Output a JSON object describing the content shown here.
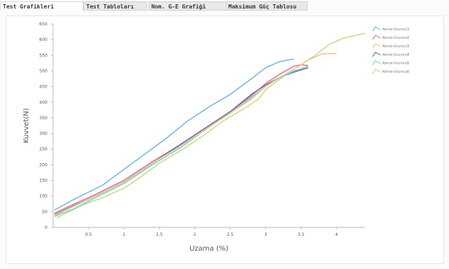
{
  "tabs": [
    {
      "label": "Test Grafikleri",
      "active": true
    },
    {
      "label": "Test Tabloları",
      "active": false
    },
    {
      "label": "Nom. G-E Grafiği",
      "active": false
    },
    {
      "label": "Maksimum Güç Tablosu",
      "active": false
    }
  ],
  "chart_data": {
    "type": "line",
    "xlabel": "Uzama (%)",
    "ylabel": "Kuvvet(N)",
    "xlim": [
      0,
      4.4
    ],
    "ylim": [
      0,
      650
    ],
    "x_ticks": [
      "0.5",
      "1",
      "1.5",
      "2",
      "2.5",
      "3",
      "3.5",
      "4"
    ],
    "x_tick_values": [
      0.5,
      1,
      1.5,
      2,
      2.5,
      3,
      3.5,
      4
    ],
    "y_ticks": [
      "0",
      "50",
      "100",
      "150",
      "200",
      "250",
      "300",
      "350",
      "400",
      "450",
      "500",
      "550",
      "600",
      "650"
    ],
    "y_tick_values": [
      0,
      50,
      100,
      150,
      200,
      250,
      300,
      350,
      400,
      450,
      500,
      550,
      600,
      650
    ],
    "grid": false,
    "legend_position": "right",
    "series": [
      {
        "name": "Kerve-Ucuncu1",
        "color": "#7ab8e8",
        "points": [
          [
            0.02,
            55
          ],
          [
            0.3,
            90
          ],
          [
            0.7,
            135
          ],
          [
            1.0,
            185
          ],
          [
            1.3,
            235
          ],
          [
            1.6,
            285
          ],
          [
            1.9,
            340
          ],
          [
            2.2,
            385
          ],
          [
            2.5,
            425
          ],
          [
            2.8,
            475
          ],
          [
            3.0,
            510
          ],
          [
            3.2,
            530
          ],
          [
            3.4,
            538
          ]
        ]
      },
      {
        "name": "Kerve-Ucuncu2",
        "color": "#e07a8a",
        "points": [
          [
            0.02,
            45
          ],
          [
            0.3,
            75
          ],
          [
            0.6,
            105
          ],
          [
            1.0,
            150
          ],
          [
            1.4,
            210
          ],
          [
            1.8,
            265
          ],
          [
            2.2,
            325
          ],
          [
            2.5,
            370
          ],
          [
            2.8,
            420
          ],
          [
            3.0,
            460
          ],
          [
            3.2,
            490
          ],
          [
            3.4,
            515
          ],
          [
            3.5,
            520
          ],
          [
            3.6,
            517
          ]
        ]
      },
      {
        "name": "Kerve-Ucuncu3",
        "color": "#c8dc8c",
        "points": [
          [
            0.05,
            30
          ],
          [
            0.4,
            70
          ],
          [
            0.7,
            95
          ],
          [
            1.0,
            125
          ],
          [
            1.2,
            155
          ],
          [
            1.5,
            205
          ],
          [
            1.8,
            245
          ],
          [
            2.1,
            290
          ],
          [
            2.4,
            340
          ],
          [
            2.7,
            380
          ],
          [
            2.9,
            410
          ],
          [
            3.0,
            440
          ],
          [
            3.3,
            490
          ],
          [
            3.5,
            520
          ],
          [
            3.7,
            550
          ],
          [
            3.9,
            585
          ],
          [
            4.1,
            605
          ],
          [
            4.4,
            620
          ]
        ]
      },
      {
        "name": "Kerve-Ucuncu4",
        "color": "#6e6ea8",
        "points": [
          [
            0.02,
            40
          ],
          [
            0.3,
            70
          ],
          [
            0.6,
            100
          ],
          [
            1.0,
            145
          ],
          [
            1.4,
            205
          ],
          [
            1.8,
            265
          ],
          [
            2.2,
            325
          ],
          [
            2.5,
            370
          ],
          [
            2.8,
            425
          ],
          [
            3.0,
            455
          ],
          [
            3.2,
            480
          ],
          [
            3.45,
            500
          ],
          [
            3.6,
            510
          ]
        ]
      },
      {
        "name": "Kerve-Ucuncu5",
        "color": "#7ecfd8",
        "points": [
          [
            0.02,
            35
          ],
          [
            0.3,
            60
          ],
          [
            0.6,
            95
          ],
          [
            1.0,
            140
          ],
          [
            1.4,
            200
          ],
          [
            1.8,
            255
          ],
          [
            2.2,
            320
          ],
          [
            2.5,
            365
          ],
          [
            2.8,
            415
          ],
          [
            3.0,
            450
          ],
          [
            3.2,
            478
          ],
          [
            3.4,
            500
          ],
          [
            3.6,
            515
          ]
        ]
      },
      {
        "name": "Kerve-Ucuncu6",
        "color": "#f0c890",
        "points": [
          [
            0.02,
            38
          ],
          [
            0.3,
            68
          ],
          [
            0.6,
            100
          ],
          [
            1.0,
            145
          ],
          [
            1.4,
            205
          ],
          [
            1.8,
            260
          ],
          [
            2.2,
            320
          ],
          [
            2.5,
            365
          ],
          [
            2.8,
            410
          ],
          [
            3.0,
            450
          ],
          [
            3.2,
            480
          ],
          [
            3.4,
            505
          ],
          [
            3.6,
            535
          ],
          [
            3.8,
            555
          ],
          [
            4.0,
            555
          ]
        ]
      }
    ]
  }
}
